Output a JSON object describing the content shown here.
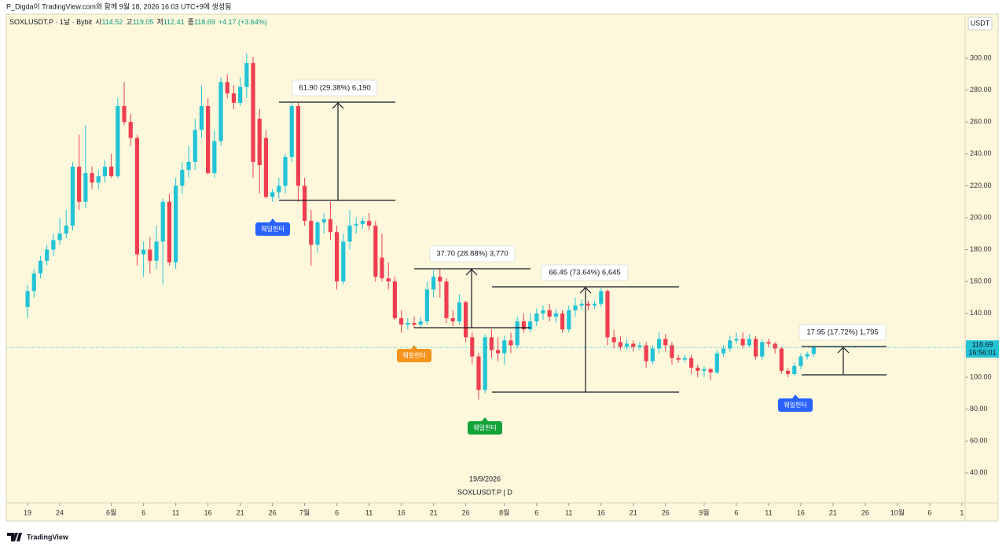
{
  "header": {
    "caption": "P_Digda이 TradingView.com와 함께 9월 18, 2026 16:03 UTC+9에 생성됨",
    "symbol": "SOXLUSDT.P · 1날 · Bybit",
    "labels": [
      "시",
      "고",
      "저",
      "종"
    ],
    "change": "+4.17 (+3.64%)",
    "currency": "USDT"
  },
  "chart_data": {
    "type": "candlestick",
    "open": [
      144,
      154,
      165,
      173,
      180,
      186,
      190,
      195,
      232,
      210,
      228,
      222,
      226,
      232,
      226,
      270,
      260,
      250,
      177,
      180,
      173,
      185,
      210,
      172,
      220,
      230,
      235,
      255,
      270,
      228,
      248,
      285,
      278,
      272,
      282,
      297,
      262,
      250,
      213,
      216,
      220,
      238,
      270,
      220,
      198,
      183,
      197,
      199,
      191,
      160,
      185,
      195,
      196,
      198,
      195,
      175,
      162,
      160,
      137,
      133,
      134,
      133,
      135,
      155,
      163,
      160,
      137,
      135,
      147,
      125,
      113,
      92,
      125,
      117,
      115,
      123,
      120,
      135,
      130,
      135,
      140,
      142,
      138,
      140,
      130,
      142,
      145,
      146,
      145,
      146,
      154,
      125,
      122,
      119,
      121,
      119,
      120,
      110,
      118,
      124,
      120,
      112,
      111,
      112,
      106,
      104,
      105,
      103,
      115,
      118,
      123,
      124,
      120,
      124,
      113,
      122,
      121,
      118,
      104,
      102,
      107,
      113,
      114.52
    ],
    "high": [
      158,
      168,
      176,
      183,
      190,
      200,
      205,
      235,
      252,
      258,
      232,
      230,
      236,
      240,
      275,
      285,
      265,
      252,
      185,
      188,
      195,
      212,
      215,
      225,
      235,
      245,
      262,
      283,
      275,
      255,
      288,
      290,
      283,
      288,
      303,
      301,
      268,
      255,
      218,
      225,
      240,
      272,
      272,
      225,
      205,
      198,
      203,
      210,
      195,
      190,
      205,
      200,
      200,
      203,
      198,
      190,
      172,
      163,
      142,
      137,
      138,
      138,
      160,
      167,
      168,
      162,
      142,
      152,
      148,
      128,
      115,
      127,
      130,
      125,
      126,
      128,
      138,
      140,
      140,
      143,
      145,
      146,
      143,
      142,
      145,
      150,
      149,
      148,
      148,
      156,
      155,
      130,
      126,
      124,
      123,
      122,
      122,
      120,
      128,
      127,
      122,
      114,
      114,
      114,
      108,
      107,
      106,
      117,
      120,
      126,
      128,
      128,
      127,
      126,
      124,
      124,
      122,
      119,
      106,
      109,
      115,
      116,
      119.05
    ],
    "low": [
      137,
      150,
      162,
      170,
      176,
      183,
      187,
      192,
      205,
      206,
      218,
      218,
      222,
      225,
      225,
      258,
      245,
      170,
      163,
      165,
      168,
      158,
      170,
      168,
      215,
      225,
      230,
      250,
      227,
      225,
      245,
      275,
      268,
      270,
      275,
      225,
      215,
      212,
      210,
      212,
      215,
      235,
      210,
      195,
      170,
      178,
      190,
      186,
      155,
      158,
      180,
      190,
      193,
      192,
      160,
      160,
      155,
      136,
      128,
      130,
      131,
      131,
      133,
      150,
      150,
      134,
      132,
      133,
      122,
      108,
      86,
      90,
      112,
      110,
      108,
      115,
      118,
      128,
      128,
      132,
      136,
      135,
      134,
      128,
      128,
      138,
      142,
      142,
      143,
      144,
      120,
      118,
      117,
      117,
      116,
      117,
      106,
      108,
      115,
      116,
      108,
      109,
      109,
      102,
      100,
      100,
      98,
      102,
      113,
      116,
      121,
      118,
      119,
      111,
      111,
      119,
      115,
      102,
      100,
      101,
      105,
      111,
      112.41
    ],
    "close": [
      154,
      165,
      173,
      180,
      186,
      190,
      195,
      232,
      210,
      228,
      222,
      226,
      232,
      226,
      270,
      260,
      250,
      177,
      180,
      173,
      185,
      210,
      172,
      220,
      230,
      235,
      255,
      270,
      228,
      248,
      285,
      278,
      272,
      282,
      297,
      235,
      233,
      213,
      216,
      220,
      238,
      270,
      220,
      198,
      183,
      197,
      199,
      191,
      160,
      185,
      195,
      196,
      198,
      195,
      163,
      162,
      160,
      137,
      133,
      134,
      133,
      135,
      155,
      163,
      160,
      137,
      135,
      147,
      125,
      113,
      92,
      125,
      117,
      115,
      123,
      120,
      135,
      130,
      135,
      140,
      142,
      138,
      140,
      130,
      142,
      145,
      146,
      145,
      146,
      154,
      125,
      122,
      119,
      121,
      119,
      120,
      110,
      118,
      124,
      120,
      112,
      111,
      112,
      106,
      104,
      105,
      103,
      115,
      118,
      123,
      124,
      120,
      124,
      113,
      122,
      121,
      118,
      104,
      102,
      107,
      113,
      114.52,
      118.69
    ],
    "up_color": "#22c3d6",
    "down_color": "#ef3e4f",
    "xlim": [
      -3.3,
      145.5
    ],
    "ylim": [
      21.2,
      327.6
    ],
    "yticks": [
      {
        "value": 300,
        "label": "300.00"
      },
      {
        "value": 280,
        "label": "280.00"
      },
      {
        "value": 260,
        "label": "260.00"
      },
      {
        "value": 240,
        "label": "240.00"
      },
      {
        "value": 220,
        "label": "220.00"
      },
      {
        "value": 200,
        "label": "200.00"
      },
      {
        "value": 180,
        "label": "180.00"
      },
      {
        "value": 160,
        "label": "160.00"
      },
      {
        "value": 140,
        "label": "140.00"
      },
      {
        "value": 120,
        "label": "120.00"
      },
      {
        "value": 100,
        "label": "100.00"
      },
      {
        "value": 80,
        "label": "80.00"
      },
      {
        "value": 60,
        "label": "60.00"
      },
      {
        "value": 40,
        "label": "40.00"
      }
    ],
    "xticks": [
      {
        "value": 0,
        "label": "19"
      },
      {
        "value": 5,
        "label": "24"
      },
      {
        "value": 13,
        "label": "6월"
      },
      {
        "value": 18,
        "label": "6"
      },
      {
        "value": 23,
        "label": "11"
      },
      {
        "value": 28,
        "label": "16"
      },
      {
        "value": 33,
        "label": "21"
      },
      {
        "value": 38,
        "label": "26"
      },
      {
        "value": 43,
        "label": "7월"
      },
      {
        "value": 48,
        "label": "6"
      },
      {
        "value": 53,
        "label": "11"
      },
      {
        "value": 58,
        "label": "16"
      },
      {
        "value": 63,
        "label": "21"
      },
      {
        "value": 68,
        "label": "26"
      },
      {
        "value": 74,
        "label": "8월"
      },
      {
        "value": 79,
        "label": "6"
      },
      {
        "value": 84,
        "label": "11"
      },
      {
        "value": 89,
        "label": "16"
      },
      {
        "value": 94,
        "label": "21"
      },
      {
        "value": 99,
        "label": "26"
      },
      {
        "value": 105,
        "label": "9월"
      },
      {
        "value": 110,
        "label": "6"
      },
      {
        "value": 115,
        "label": "11"
      },
      {
        "value": 120,
        "label": "16"
      },
      {
        "value": 125,
        "label": "21"
      },
      {
        "value": 130,
        "label": "26"
      },
      {
        "value": 135,
        "label": "10월"
      },
      {
        "value": 140,
        "label": "6"
      },
      {
        "value": 145,
        "label": "1"
      }
    ],
    "last_time": "16:56:01",
    "watermark": [
      "19/9/2026",
      "SOXLUSDT.P | D"
    ],
    "measurements": [
      "61.90 (29.38%) 6,190",
      "37.70 (28.88%) 3,770",
      "66.45 (73.64%) 6,645",
      "17.95 (17.72%) 1,795"
    ],
    "badges": [
      "웨일헌터",
      "웨일헌터",
      "웨일헌터",
      "웨일헌터"
    ]
  },
  "footer": {
    "brand": "TradingView"
  }
}
